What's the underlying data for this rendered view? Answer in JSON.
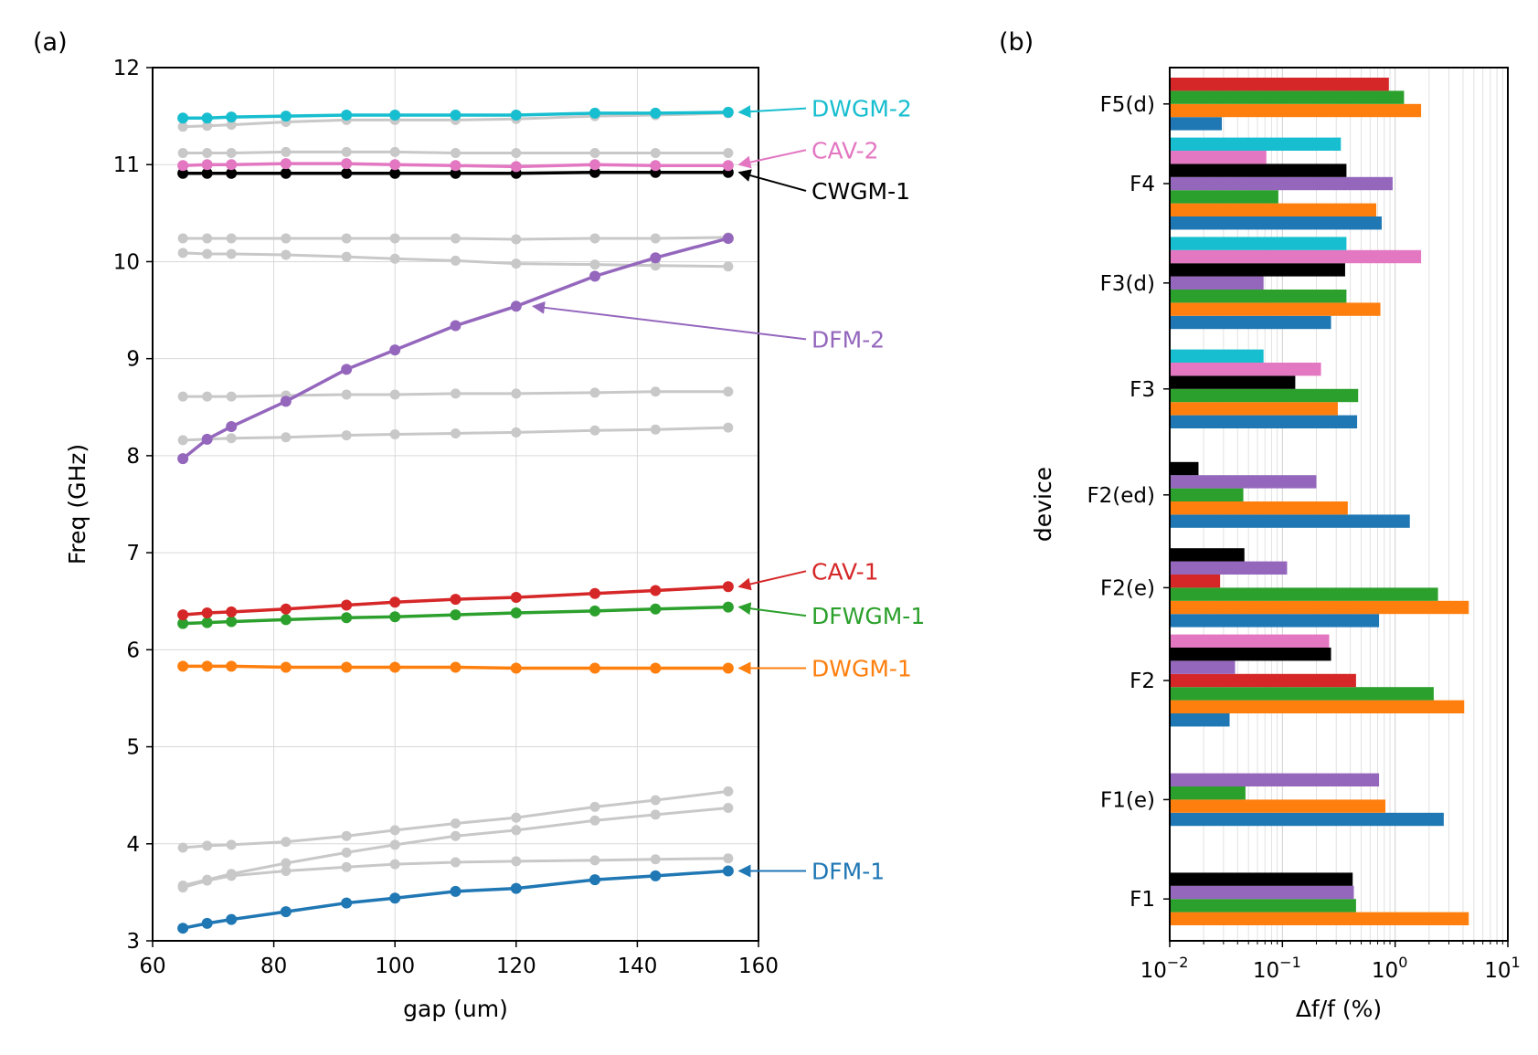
{
  "colors": {
    "gray": "#c8c8c8",
    "grid": "#d9d9d9",
    "DFM-1": "#1f77b4",
    "DWGM-1": "#ff7f0e",
    "DFWGM-1": "#2ca02c",
    "CAV-1": "#d62728",
    "DFM-2": "#9467bd",
    "CWGM-1": "#000000",
    "CAV-2": "#e377c2",
    "DWGM-2": "#17becf"
  },
  "chart_data": [
    {
      "type": "line",
      "panel_label": "(a)",
      "xlabel": "gap (um)",
      "ylabel": "Freq (GHz)",
      "xlim": [
        60,
        160
      ],
      "ylim": [
        3,
        12
      ],
      "xticks": [
        "60",
        "80",
        "100",
        "120",
        "140",
        "160"
      ],
      "yticks": [
        "3",
        "4",
        "5",
        "6",
        "7",
        "8",
        "9",
        "10",
        "11",
        "12"
      ],
      "grid": true,
      "x": [
        65,
        69,
        73,
        82,
        92,
        100,
        110,
        120,
        133,
        143,
        155
      ],
      "background_series": [
        {
          "name": "gray-1",
          "values": [
            3.55,
            3.62,
            3.67,
            3.72,
            3.76,
            3.79,
            3.81,
            3.82,
            3.83,
            3.84,
            3.85
          ]
        },
        {
          "name": "gray-2",
          "values": [
            3.57,
            3.63,
            3.69,
            3.8,
            3.91,
            3.99,
            4.08,
            4.14,
            4.24,
            4.3,
            4.37
          ]
        },
        {
          "name": "gray-3",
          "values": [
            3.96,
            3.98,
            3.99,
            4.02,
            4.08,
            4.14,
            4.21,
            4.27,
            4.38,
            4.45,
            4.54
          ]
        },
        {
          "name": "gray-4",
          "values": [
            8.16,
            8.17,
            8.18,
            8.19,
            8.21,
            8.22,
            8.23,
            8.24,
            8.26,
            8.27,
            8.29
          ]
        },
        {
          "name": "gray-5",
          "values": [
            8.61,
            8.61,
            8.61,
            8.62,
            8.63,
            8.63,
            8.64,
            8.64,
            8.65,
            8.66,
            8.66
          ]
        },
        {
          "name": "gray-6",
          "values": [
            10.09,
            10.08,
            10.08,
            10.07,
            10.05,
            10.03,
            10.01,
            9.98,
            9.97,
            9.96,
            9.95
          ]
        },
        {
          "name": "gray-7",
          "values": [
            10.24,
            10.24,
            10.24,
            10.24,
            10.24,
            10.24,
            10.24,
            10.23,
            10.24,
            10.24,
            10.25
          ]
        },
        {
          "name": "gray-8",
          "values": [
            11.12,
            11.12,
            11.12,
            11.13,
            11.13,
            11.13,
            11.12,
            11.12,
            11.12,
            11.12,
            11.12
          ]
        },
        {
          "name": "gray-9",
          "values": [
            11.39,
            11.4,
            11.41,
            11.44,
            11.46,
            11.46,
            11.46,
            11.47,
            11.5,
            11.51,
            11.53
          ]
        }
      ],
      "series": [
        {
          "name": "DFM-1",
          "values": [
            3.13,
            3.18,
            3.22,
            3.3,
            3.39,
            3.44,
            3.51,
            3.54,
            3.63,
            3.67,
            3.72
          ]
        },
        {
          "name": "DWGM-1",
          "values": [
            5.83,
            5.83,
            5.83,
            5.82,
            5.82,
            5.82,
            5.82,
            5.81,
            5.81,
            5.81,
            5.81
          ]
        },
        {
          "name": "DFWGM-1",
          "values": [
            6.27,
            6.28,
            6.29,
            6.31,
            6.33,
            6.34,
            6.36,
            6.38,
            6.4,
            6.42,
            6.44
          ]
        },
        {
          "name": "CAV-1",
          "values": [
            6.36,
            6.38,
            6.39,
            6.42,
            6.46,
            6.49,
            6.52,
            6.54,
            6.58,
            6.61,
            6.65
          ]
        },
        {
          "name": "DFM-2",
          "values": [
            7.97,
            8.17,
            8.3,
            8.56,
            8.89,
            9.09,
            9.34,
            9.54,
            9.85,
            10.04,
            10.24
          ]
        },
        {
          "name": "CWGM-1",
          "values": [
            10.91,
            10.91,
            10.91,
            10.91,
            10.91,
            10.91,
            10.91,
            10.91,
            10.92,
            10.92,
            10.92
          ]
        },
        {
          "name": "CAV-2",
          "values": [
            10.99,
            11.0,
            11.0,
            11.01,
            11.01,
            11.0,
            10.99,
            10.98,
            11.0,
            10.99,
            10.99
          ]
        },
        {
          "name": "DWGM-2",
          "values": [
            11.48,
            11.48,
            11.49,
            11.5,
            11.51,
            11.51,
            11.51,
            11.51,
            11.53,
            11.53,
            11.54
          ]
        }
      ],
      "annotations": [
        {
          "text": "DWGM-2",
          "series": "DWGM-2",
          "x": 155,
          "y": 11.54,
          "label_y": 11.58
        },
        {
          "text": "CAV-2",
          "series": "CAV-2",
          "x": 155,
          "y": 11.0,
          "label_y": 11.15
        },
        {
          "text": "CWGM-1",
          "series": "CWGM-1",
          "x": 155,
          "y": 10.92,
          "label_y": 10.73
        },
        {
          "text": "DFM-2",
          "series": "DFM-2",
          "x": 121,
          "y": 9.54,
          "label_y": 9.2
        },
        {
          "text": "CAV-1",
          "series": "CAV-1",
          "x": 155,
          "y": 6.65,
          "label_y": 6.81
        },
        {
          "text": "DFWGM-1",
          "series": "DFWGM-1",
          "x": 155,
          "y": 6.44,
          "label_y": 6.35
        },
        {
          "text": "DWGM-1",
          "series": "DWGM-1",
          "x": 155,
          "y": 5.81,
          "label_y": 5.81
        },
        {
          "text": "DFM-1",
          "series": "DFM-1",
          "x": 155,
          "y": 3.72,
          "label_y": 3.72
        }
      ]
    },
    {
      "type": "bar",
      "orientation": "horizontal",
      "panel_label": "(b)",
      "xlabel": "Δf/f (%)",
      "ylabel": "device",
      "xscale": "log",
      "xlim": [
        0.01,
        10
      ],
      "xticks": [
        {
          "value": 0.01,
          "base": "10",
          "exp": "−2"
        },
        {
          "value": 0.1,
          "base": "10",
          "exp": "−1"
        },
        {
          "value": 1,
          "base": "10",
          "exp": "0"
        },
        {
          "value": 10,
          "base": "10",
          "exp": "1"
        }
      ],
      "grid": true,
      "categories": [
        "F1",
        "F1(e)",
        "F2",
        "F2(e)",
        "F2(ed)",
        "F3",
        "F3(d)",
        "F4",
        "F5(d)"
      ],
      "bars": [
        [
          {
            "mode": "DWGM-1",
            "value": 4.5
          },
          {
            "mode": "DFWGM-1",
            "value": 0.45
          },
          {
            "mode": "DFM-2",
            "value": 0.43
          },
          {
            "mode": "CWGM-1",
            "value": 0.42
          }
        ],
        [
          {
            "mode": "DFM-1",
            "value": 2.7
          },
          {
            "mode": "DWGM-1",
            "value": 0.82
          },
          {
            "mode": "DFWGM-1",
            "value": 0.047
          },
          {
            "mode": "DFM-2",
            "value": 0.72
          }
        ],
        [
          {
            "mode": "DFM-1",
            "value": 0.034
          },
          {
            "mode": "DWGM-1",
            "value": 4.1
          },
          {
            "mode": "DFWGM-1",
            "value": 2.2
          },
          {
            "mode": "CAV-1",
            "value": 0.45
          },
          {
            "mode": "DFM-2",
            "value": 0.038
          },
          {
            "mode": "CWGM-1",
            "value": 0.27
          },
          {
            "mode": "CAV-2",
            "value": 0.26
          }
        ],
        [
          {
            "mode": "DFM-1",
            "value": 0.72
          },
          {
            "mode": "DWGM-1",
            "value": 4.5
          },
          {
            "mode": "DFWGM-1",
            "value": 2.4
          },
          {
            "mode": "CAV-1",
            "value": 0.028
          },
          {
            "mode": "DFM-2",
            "value": 0.11
          },
          {
            "mode": "CWGM-1",
            "value": 0.046
          }
        ],
        [
          {
            "mode": "DFM-1",
            "value": 1.35
          },
          {
            "mode": "DWGM-1",
            "value": 0.38
          },
          {
            "mode": "DFWGM-1",
            "value": 0.045
          },
          {
            "mode": "DFM-2",
            "value": 0.2
          },
          {
            "mode": "CWGM-1",
            "value": 0.018
          }
        ],
        [
          {
            "mode": "DFM-1",
            "value": 0.46
          },
          {
            "mode": "DWGM-1",
            "value": 0.31
          },
          {
            "mode": "DFWGM-1",
            "value": 0.47
          },
          {
            "mode": "CWGM-1",
            "value": 0.13
          },
          {
            "mode": "CAV-2",
            "value": 0.22
          },
          {
            "mode": "DWGM-2",
            "value": 0.068
          }
        ],
        [
          {
            "mode": "DFM-1",
            "value": 0.27
          },
          {
            "mode": "DWGM-1",
            "value": 0.74
          },
          {
            "mode": "DFWGM-1",
            "value": 0.37
          },
          {
            "mode": "DFM-2",
            "value": 0.068
          },
          {
            "mode": "CWGM-1",
            "value": 0.36
          },
          {
            "mode": "CAV-2",
            "value": 1.7
          },
          {
            "mode": "DWGM-2",
            "value": 0.37
          }
        ],
        [
          {
            "mode": "DFM-1",
            "value": 0.76
          },
          {
            "mode": "DWGM-1",
            "value": 0.68
          },
          {
            "mode": "DFWGM-1",
            "value": 0.092
          },
          {
            "mode": "DFM-2",
            "value": 0.95
          },
          {
            "mode": "CWGM-1",
            "value": 0.37
          },
          {
            "mode": "CAV-2",
            "value": 0.072
          },
          {
            "mode": "DWGM-2",
            "value": 0.33
          }
        ],
        [
          {
            "mode": "DFM-1",
            "value": 0.029
          },
          {
            "mode": "DWGM-1",
            "value": 1.7
          },
          {
            "mode": "DFWGM-1",
            "value": 1.2
          },
          {
            "mode": "CAV-1",
            "value": 0.88
          }
        ]
      ]
    }
  ]
}
